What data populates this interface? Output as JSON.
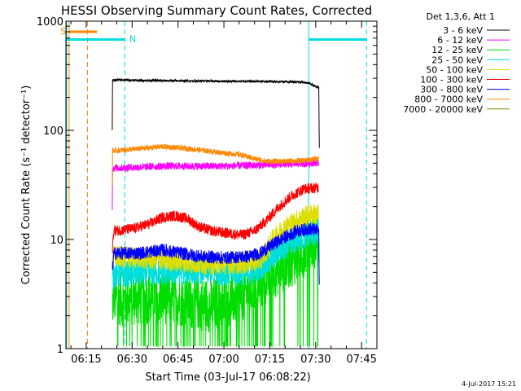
{
  "chart_data": {
    "type": "line",
    "title": "HESSI Observing Summary Count Rates, Corrected",
    "xlabel": "Start Time (03-Jul-17 06:08:22)",
    "ylabel": "Corrected Count Rate (s⁻¹ detector⁻¹)",
    "xlim_minutes": [
      368.37,
      470
    ],
    "ylim": [
      1,
      1000
    ],
    "yscale": "log",
    "x_ticks": [
      {
        "minute": 375,
        "label": "06:15"
      },
      {
        "minute": 390,
        "label": "06:30"
      },
      {
        "minute": 405,
        "label": "06:45"
      },
      {
        "minute": 420,
        "label": "07:00"
      },
      {
        "minute": 435,
        "label": "07:15"
      },
      {
        "minute": 450,
        "label": "07:30"
      },
      {
        "minute": 465,
        "label": "07:45"
      }
    ],
    "y_ticks": [
      {
        "value": 1,
        "label": "1"
      },
      {
        "value": 10,
        "label": "10"
      },
      {
        "value": 100,
        "label": "100"
      },
      {
        "value": 1000,
        "label": "1000"
      }
    ],
    "legend_title": "Det 1,3,6, Att 1",
    "series": [
      {
        "name": "3 - 6 keV",
        "color": "#000000",
        "points": [
          [
            383.5,
            100
          ],
          [
            383.6,
            290
          ],
          [
            400,
            285
          ],
          [
            420,
            282
          ],
          [
            435,
            280
          ],
          [
            445,
            278
          ],
          [
            448,
            270
          ],
          [
            450,
            252
          ],
          [
            451,
            245
          ],
          [
            451.2,
            60
          ]
        ]
      },
      {
        "name": "6 - 12 keV",
        "color": "#ff00ff",
        "points": [
          [
            383.5,
            20
          ],
          [
            383.6,
            45
          ],
          [
            400,
            47
          ],
          [
            420,
            47
          ],
          [
            432,
            48
          ],
          [
            440,
            49
          ],
          [
            448,
            50
          ],
          [
            451,
            51
          ]
        ]
      },
      {
        "name": "12 - 25 keV",
        "color": "#00dd00",
        "points": [
          [
            383.5,
            2.5
          ],
          [
            384,
            3
          ],
          [
            387,
            2.8
          ],
          [
            400,
            3
          ],
          [
            415,
            2.5
          ],
          [
            425,
            3
          ],
          [
            432,
            4
          ],
          [
            436,
            5
          ],
          [
            440,
            6
          ],
          [
            444,
            7
          ],
          [
            448,
            9
          ],
          [
            451,
            10
          ]
        ]
      },
      {
        "name": "25 - 50 keV",
        "color": "#00dddd",
        "points": [
          [
            383.5,
            4
          ],
          [
            384,
            4.8
          ],
          [
            400,
            5
          ],
          [
            412,
            5.2
          ],
          [
            420,
            5
          ],
          [
            428,
            5
          ],
          [
            434,
            6
          ],
          [
            438,
            8
          ],
          [
            442,
            9.5
          ],
          [
            447,
            11
          ],
          [
            451,
            12
          ]
        ]
      },
      {
        "name": "50 - 100 keV",
        "color": "#dddd00",
        "points": [
          [
            383.5,
            6
          ],
          [
            384,
            7
          ],
          [
            400,
            6.5
          ],
          [
            412,
            6
          ],
          [
            425,
            6
          ],
          [
            432,
            6.5
          ],
          [
            436,
            10
          ],
          [
            440,
            13
          ],
          [
            444,
            15
          ],
          [
            448,
            17
          ],
          [
            451,
            17
          ]
        ]
      },
      {
        "name": "100 - 300 keV",
        "color": "#ff0000",
        "points": [
          [
            383.5,
            8
          ],
          [
            384,
            12
          ],
          [
            390,
            12.5
          ],
          [
            396,
            14
          ],
          [
            400,
            16
          ],
          [
            404,
            16.5
          ],
          [
            408,
            15.5
          ],
          [
            412,
            13
          ],
          [
            416,
            12
          ],
          [
            420,
            11.5
          ],
          [
            426,
            11
          ],
          [
            430,
            12
          ],
          [
            434,
            15
          ],
          [
            438,
            20
          ],
          [
            442,
            25
          ],
          [
            446,
            29
          ],
          [
            451,
            30
          ]
        ]
      },
      {
        "name": "300 - 800 keV",
        "color": "#0000ff",
        "points": [
          [
            383.5,
            5
          ],
          [
            384,
            7.5
          ],
          [
            392,
            7.5
          ],
          [
            400,
            8
          ],
          [
            406,
            7.5
          ],
          [
            412,
            7
          ],
          [
            420,
            6.8
          ],
          [
            428,
            7
          ],
          [
            432,
            7.5
          ],
          [
            436,
            9
          ],
          [
            440,
            10.5
          ],
          [
            444,
            12
          ],
          [
            448,
            12.5
          ],
          [
            451,
            12
          ],
          [
            451.2,
            3
          ]
        ]
      },
      {
        "name": "800 - 7000 keV",
        "color": "#ff8800",
        "points": [
          [
            383.5,
            30
          ],
          [
            383.6,
            65
          ],
          [
            390,
            67
          ],
          [
            400,
            71
          ],
          [
            408,
            68
          ],
          [
            414,
            65
          ],
          [
            420,
            62
          ],
          [
            425,
            60
          ],
          [
            430,
            55
          ],
          [
            434,
            52
          ],
          [
            440,
            52
          ],
          [
            446,
            53
          ],
          [
            451,
            55
          ]
        ]
      },
      {
        "name": "7000 - 20000 keV",
        "color": "#888800",
        "points": []
      }
    ],
    "markers": [
      {
        "label": "S",
        "color": "#ff8800",
        "x_start_minute": 369.5,
        "x_end_minute": 378.5,
        "y_value": 800
      },
      {
        "label": "N",
        "color": "#00dddd",
        "x_start_minute": 368.7,
        "x_end_minute": 387.5,
        "y_value": 680
      },
      {
        "label": "",
        "color": "#00dddd",
        "x_start_minute": 447.8,
        "x_end_minute": 466.5,
        "y_value": 680
      }
    ],
    "vertical_lines": [
      {
        "color": "#00dddd",
        "style": "solid",
        "minute": 368.6
      },
      {
        "color": "#ff8800",
        "style": "solid",
        "minute": 369.4
      },
      {
        "color": "#ff8800",
        "style": "dashed",
        "minute": 375.4
      },
      {
        "color": "#00dddd",
        "style": "dashed",
        "minute": 387.6
      },
      {
        "color": "#00dddd",
        "style": "solid",
        "minute": 447.7
      },
      {
        "color": "#00dddd",
        "style": "dashed",
        "minute": 466.6
      }
    ],
    "stamp": "4-Jul-2017 15:21"
  }
}
